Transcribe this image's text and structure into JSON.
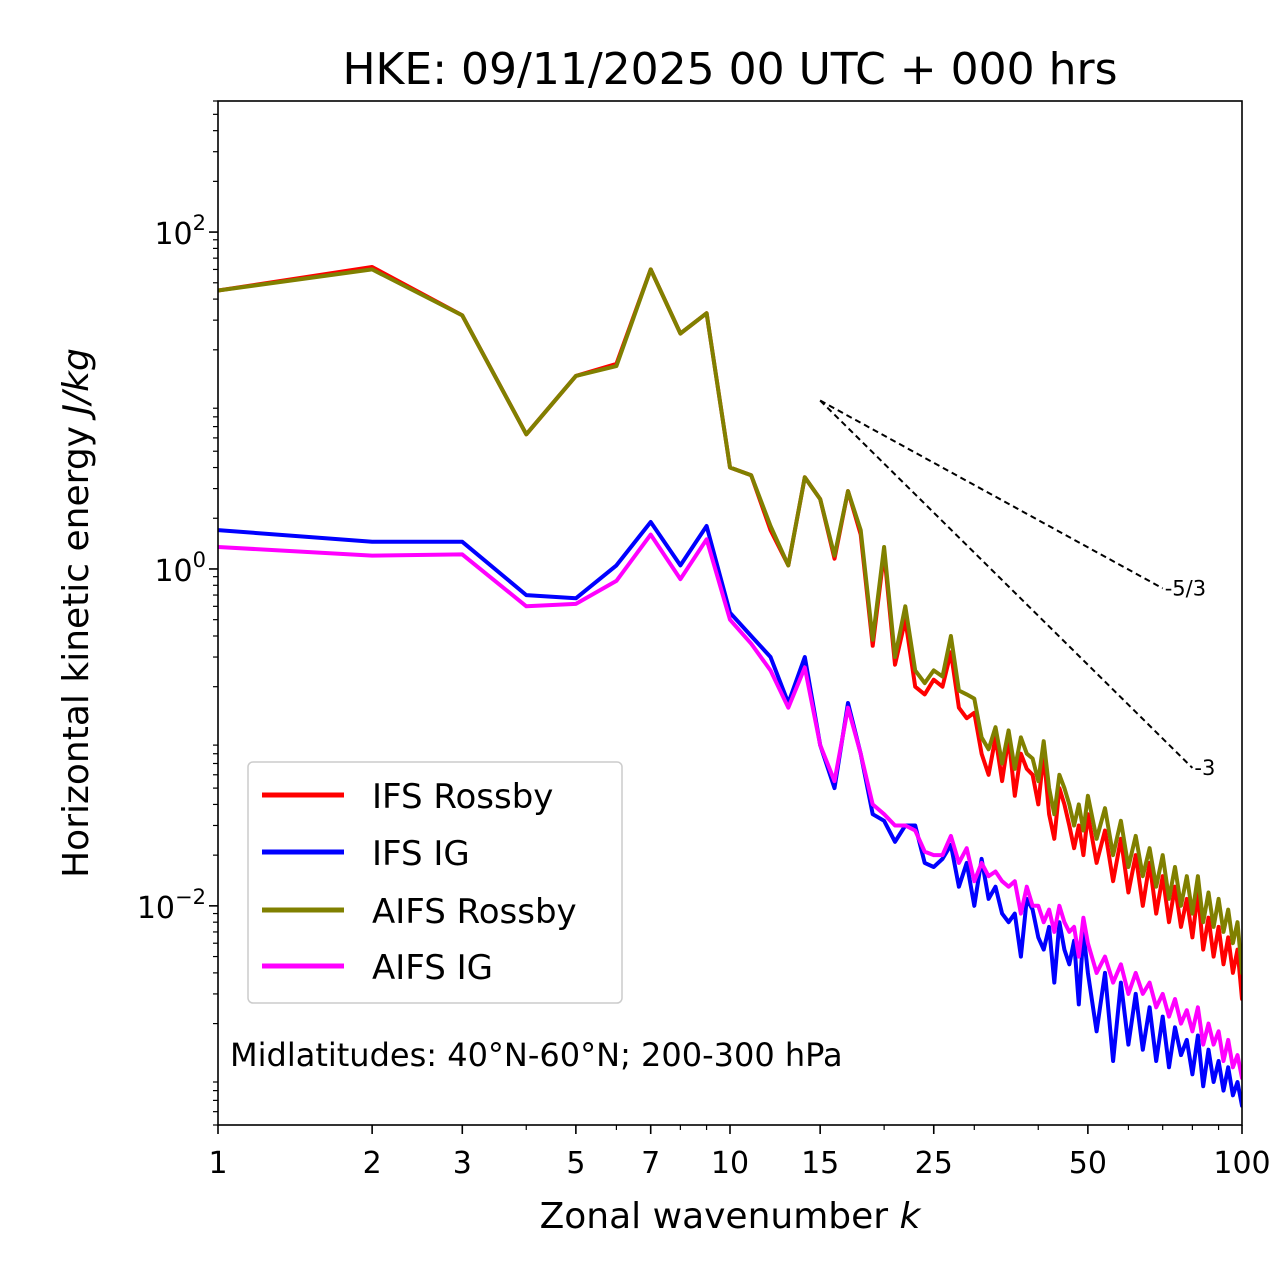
{
  "chart_data": {
    "type": "line",
    "title": "HKE: 09/11/2025 00 UTC + 000 hrs",
    "xlabel_text": "Zonal wavenumber",
    "xlabel_var": "k",
    "ylabel_text": "Horizontal kinetic energy",
    "ylabel_units": "J/kg",
    "xscale": "log",
    "yscale": "log",
    "xlim": [
      1,
      100
    ],
    "ylim": [
      0.0005,
      600
    ],
    "x_ticks": [
      1,
      2,
      3,
      5,
      7,
      10,
      15,
      25,
      50,
      100
    ],
    "x_tick_labels": [
      "1",
      "2",
      "3",
      "5",
      "7",
      "10",
      "15",
      "25",
      "50",
      "100"
    ],
    "y_ticks": [
      {
        "value": 0.01,
        "base": "10",
        "exp": "−2"
      },
      {
        "value": 1,
        "base": "10",
        "exp": "0"
      },
      {
        "value": 100,
        "base": "10",
        "exp": "2"
      }
    ],
    "annotation": "Midlatitudes: 40°N-60°N; 200-300 hPa",
    "reference_lines": [
      {
        "label": "-5/3",
        "slope": -1.6667,
        "x": [
          15,
          70
        ],
        "y0": 10
      },
      {
        "label": "-3",
        "slope": -3,
        "x": [
          15,
          80
        ],
        "y0": 10
      }
    ],
    "legend_position": "lower-left",
    "series": [
      {
        "name": "IFS Rossby",
        "color": "#ff0000",
        "x": [
          1,
          2,
          3,
          4,
          5,
          6,
          7,
          8,
          9,
          10,
          11,
          12,
          13,
          14,
          15,
          16,
          17,
          18,
          19,
          20,
          21,
          22,
          23,
          24,
          25,
          26,
          27,
          28,
          29,
          30,
          31,
          32,
          33,
          34,
          35,
          36,
          37,
          38,
          39,
          40,
          41,
          42,
          43,
          44,
          45,
          46,
          47,
          48,
          49,
          50,
          52,
          54,
          56,
          58,
          60,
          62,
          64,
          66,
          68,
          70,
          72,
          74,
          76,
          78,
          80,
          82,
          84,
          86,
          88,
          90,
          92,
          94,
          96,
          98,
          100
        ],
        "values": [
          45,
          62,
          32,
          6.3,
          14,
          16.5,
          60,
          25,
          33,
          4,
          3.6,
          1.7,
          1.05,
          3.5,
          2.6,
          1.15,
          2.9,
          1.6,
          0.35,
          1.25,
          0.27,
          0.5,
          0.2,
          0.18,
          0.22,
          0.2,
          0.32,
          0.15,
          0.13,
          0.14,
          0.08,
          0.06,
          0.1,
          0.055,
          0.1,
          0.045,
          0.08,
          0.065,
          0.06,
          0.04,
          0.08,
          0.035,
          0.025,
          0.05,
          0.04,
          0.03,
          0.022,
          0.03,
          0.02,
          0.035,
          0.018,
          0.028,
          0.014,
          0.025,
          0.012,
          0.02,
          0.01,
          0.018,
          0.009,
          0.015,
          0.008,
          0.013,
          0.0075,
          0.011,
          0.0065,
          0.012,
          0.0055,
          0.0085,
          0.005,
          0.0075,
          0.0045,
          0.0065,
          0.004,
          0.0055,
          0.0028
        ]
      },
      {
        "name": "IFS IG",
        "color": "#0000ff",
        "x": [
          1,
          2,
          3,
          4,
          5,
          6,
          7,
          8,
          9,
          10,
          11,
          12,
          13,
          14,
          15,
          16,
          17,
          18,
          19,
          20,
          21,
          22,
          23,
          24,
          25,
          26,
          27,
          28,
          29,
          30,
          31,
          32,
          33,
          34,
          35,
          36,
          37,
          38,
          39,
          40,
          41,
          42,
          43,
          44,
          45,
          46,
          47,
          48,
          49,
          50,
          52,
          54,
          56,
          58,
          60,
          62,
          64,
          66,
          68,
          70,
          72,
          74,
          76,
          78,
          80,
          82,
          84,
          86,
          88,
          90,
          92,
          94,
          96,
          98,
          100
        ],
        "values": [
          1.7,
          1.45,
          1.45,
          0.7,
          0.67,
          1.05,
          1.9,
          1.05,
          1.8,
          0.55,
          0.4,
          0.3,
          0.16,
          0.3,
          0.09,
          0.05,
          0.16,
          0.08,
          0.035,
          0.032,
          0.024,
          0.03,
          0.03,
          0.018,
          0.017,
          0.019,
          0.023,
          0.013,
          0.018,
          0.01,
          0.019,
          0.011,
          0.013,
          0.009,
          0.008,
          0.009,
          0.005,
          0.011,
          0.0095,
          0.0065,
          0.0055,
          0.0075,
          0.0035,
          0.008,
          0.0055,
          0.0045,
          0.0062,
          0.0026,
          0.007,
          0.004,
          0.0018,
          0.004,
          0.0012,
          0.0035,
          0.0015,
          0.003,
          0.0014,
          0.0025,
          0.0012,
          0.0022,
          0.0011,
          0.0019,
          0.0013,
          0.0016,
          0.001,
          0.0017,
          0.00085,
          0.0014,
          0.0009,
          0.0012,
          0.0008,
          0.0011,
          0.00075,
          0.0009,
          0.00065
        ]
      },
      {
        "name": "AIFS Rossby",
        "color": "#808000",
        "x": [
          1,
          2,
          3,
          4,
          5,
          6,
          7,
          8,
          9,
          10,
          11,
          12,
          13,
          14,
          15,
          16,
          17,
          18,
          19,
          20,
          21,
          22,
          23,
          24,
          25,
          26,
          27,
          28,
          29,
          30,
          31,
          32,
          33,
          34,
          35,
          36,
          37,
          38,
          39,
          40,
          41,
          42,
          43,
          44,
          45,
          46,
          47,
          48,
          49,
          50,
          52,
          54,
          56,
          58,
          60,
          62,
          64,
          66,
          68,
          70,
          72,
          74,
          76,
          78,
          80,
          82,
          84,
          86,
          88,
          90,
          92,
          94,
          96,
          98,
          100
        ],
        "values": [
          45,
          60,
          32,
          6.3,
          14,
          16,
          60,
          25,
          33,
          4,
          3.6,
          1.8,
          1.05,
          3.5,
          2.6,
          1.2,
          2.9,
          1.7,
          0.38,
          1.35,
          0.3,
          0.6,
          0.25,
          0.21,
          0.25,
          0.23,
          0.4,
          0.19,
          0.18,
          0.17,
          0.1,
          0.085,
          0.115,
          0.07,
          0.11,
          0.065,
          0.1,
          0.08,
          0.075,
          0.055,
          0.095,
          0.05,
          0.035,
          0.06,
          0.05,
          0.04,
          0.03,
          0.04,
          0.028,
          0.045,
          0.025,
          0.038,
          0.02,
          0.032,
          0.017,
          0.026,
          0.015,
          0.022,
          0.013,
          0.02,
          0.011,
          0.017,
          0.01,
          0.015,
          0.009,
          0.015,
          0.008,
          0.012,
          0.0075,
          0.011,
          0.007,
          0.0095,
          0.006,
          0.008,
          0.004
        ]
      },
      {
        "name": "AIFS IG",
        "color": "#ff00ff",
        "x": [
          1,
          2,
          3,
          4,
          5,
          6,
          7,
          8,
          9,
          10,
          11,
          12,
          13,
          14,
          15,
          16,
          17,
          18,
          19,
          20,
          21,
          22,
          23,
          24,
          25,
          26,
          27,
          28,
          29,
          30,
          31,
          32,
          33,
          34,
          35,
          36,
          37,
          38,
          39,
          40,
          41,
          42,
          43,
          44,
          45,
          46,
          47,
          48,
          49,
          50,
          52,
          54,
          56,
          58,
          60,
          62,
          64,
          66,
          68,
          70,
          72,
          74,
          76,
          78,
          80,
          82,
          84,
          86,
          88,
          90,
          92,
          94,
          96,
          98,
          100
        ],
        "values": [
          1.35,
          1.2,
          1.22,
          0.6,
          0.62,
          0.85,
          1.6,
          0.87,
          1.5,
          0.5,
          0.36,
          0.25,
          0.15,
          0.26,
          0.09,
          0.055,
          0.15,
          0.08,
          0.04,
          0.035,
          0.03,
          0.03,
          0.028,
          0.021,
          0.02,
          0.02,
          0.026,
          0.018,
          0.022,
          0.014,
          0.018,
          0.015,
          0.016,
          0.014,
          0.013,
          0.014,
          0.009,
          0.013,
          0.01,
          0.01,
          0.008,
          0.0095,
          0.007,
          0.01,
          0.008,
          0.007,
          0.0075,
          0.005,
          0.0085,
          0.006,
          0.004,
          0.005,
          0.0035,
          0.0045,
          0.003,
          0.004,
          0.003,
          0.0035,
          0.0025,
          0.003,
          0.0022,
          0.0028,
          0.002,
          0.0024,
          0.0018,
          0.0025,
          0.0015,
          0.002,
          0.0015,
          0.0018,
          0.0012,
          0.0016,
          0.0011,
          0.0013,
          0.00095
        ]
      }
    ]
  }
}
